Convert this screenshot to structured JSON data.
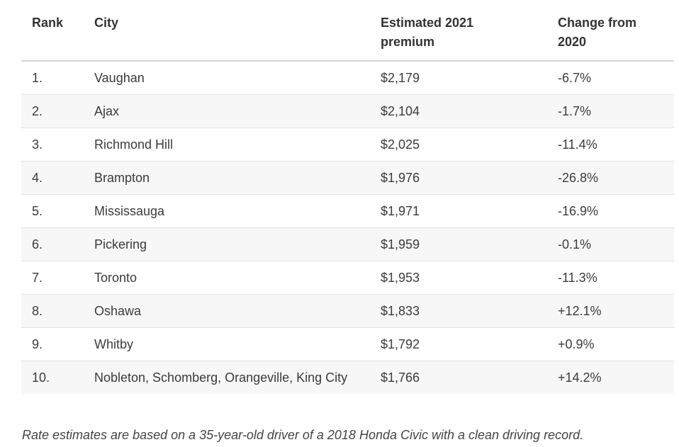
{
  "table": {
    "headers": {
      "rank": "Rank",
      "city": "City",
      "premium_line1": "Estimated 2021",
      "premium_line2": "premium",
      "change_line1": "Change from",
      "change_line2": "2020"
    },
    "rows": [
      {
        "rank": "1.",
        "city": "Vaughan",
        "premium": "$2,179",
        "change": "-6.7%"
      },
      {
        "rank": "2.",
        "city": "Ajax",
        "premium": "$2,104",
        "change": "-1.7%"
      },
      {
        "rank": "3.",
        "city": "Richmond Hill",
        "premium": "$2,025",
        "change": "-11.4%"
      },
      {
        "rank": "4.",
        "city": "Brampton",
        "premium": "$1,976",
        "change": "-26.8%"
      },
      {
        "rank": "5.",
        "city": "Mississauga",
        "premium": "$1,971",
        "change": "-16.9%"
      },
      {
        "rank": "6.",
        "city": "Pickering",
        "premium": "$1,959",
        "change": "-0.1%"
      },
      {
        "rank": "7.",
        "city": "Toronto",
        "premium": "$1,953",
        "change": "-11.3%"
      },
      {
        "rank": "8.",
        "city": "Oshawa",
        "premium": "$1,833",
        "change": "+12.1%"
      },
      {
        "rank": "9.",
        "city": "Whitby",
        "premium": "$1,792",
        "change": "+0.9%"
      },
      {
        "rank": "10.",
        "city": "Nobleton, Schomberg, Orangeville, King City",
        "premium": "$1,766",
        "change": "+14.2%"
      }
    ]
  },
  "footnote": "Rate estimates are based on a 35-year-old driver of a 2018 Honda Civic with a clean driving record."
}
